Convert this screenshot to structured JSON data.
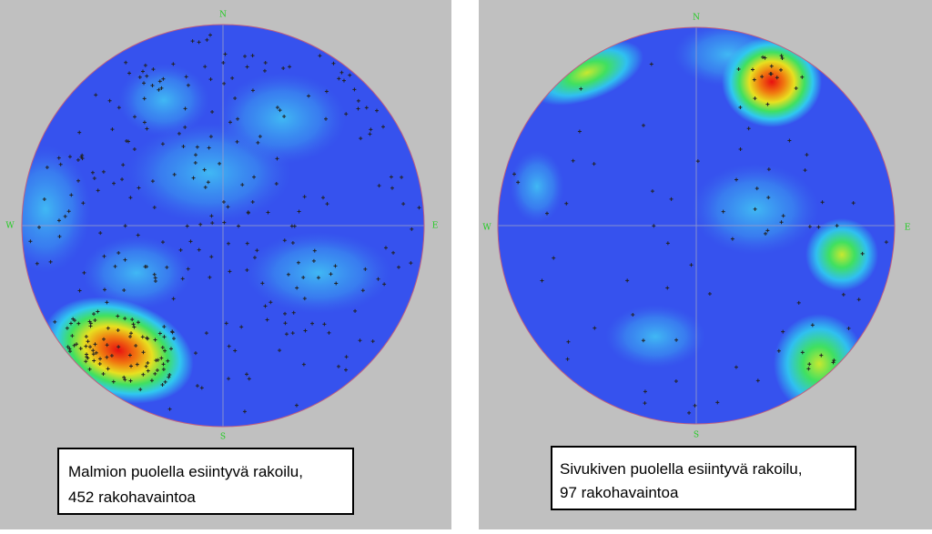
{
  "panels": [
    {
      "compass": {
        "north": "N",
        "south": "S",
        "west": "W",
        "east": "E"
      },
      "caption": [
        "Malmion puolella esiintyvä rakoilu,",
        "452 rakohavaintoa"
      ]
    },
    {
      "compass": {
        "north": "N",
        "south": "S",
        "west": "W",
        "east": "E"
      },
      "caption": [
        "Sivukiven puolella esiintyvä rakoilu,",
        "97 rakohavaintoa"
      ]
    }
  ]
}
